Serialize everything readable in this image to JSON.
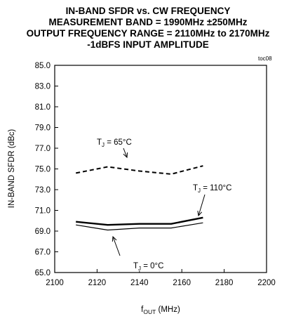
{
  "chart_data": {
    "type": "line",
    "title_lines": [
      "IN-BAND SFDR vs. CW FREQUENCY",
      "MEASUREMENT BAND = 1990MHz ±250MHz",
      "OUTPUT FREQUENCY RANGE = 2110MHz to 2170MHz",
      "-1dBFS INPUT AMPLITUDE"
    ],
    "tag": "toc08",
    "xlabel": {
      "main": "f",
      "sub": "OUT",
      "unit": " (MHz)"
    },
    "ylabel": "IN-BAND SFDR (dBc)",
    "xlim": [
      2100,
      2200
    ],
    "ylim": [
      65,
      85
    ],
    "xticks": [
      "2100",
      "2120",
      "2140",
      "2160",
      "2180",
      "2200"
    ],
    "yticks": [
      "65.0",
      "67.0",
      "69.0",
      "71.0",
      "73.0",
      "75.0",
      "77.0",
      "79.0",
      "81.0",
      "83.0",
      "85.0"
    ],
    "grid": false,
    "series": [
      {
        "name": "T_J = 65°C",
        "label_main": "T",
        "label_sub": "J",
        "label_rest": " = 65°C",
        "style": "dashed",
        "stroke_width": 2,
        "x": [
          2110,
          2125,
          2140,
          2155,
          2170
        ],
        "y": [
          74.6,
          75.2,
          74.8,
          74.5,
          75.3
        ]
      },
      {
        "name": "T_J = 110°C",
        "label_main": "T",
        "label_sub": "J",
        "label_rest": " = 110°C",
        "style": "solid",
        "stroke_width": 2.4,
        "x": [
          2110,
          2125,
          2140,
          2155,
          2170
        ],
        "y": [
          69.9,
          69.6,
          69.7,
          69.7,
          70.3
        ]
      },
      {
        "name": "T_J = 0°C",
        "label_main": "T",
        "label_sub": "J",
        "label_rest": " = 0°C",
        "style": "solid",
        "stroke_width": 1.2,
        "x": [
          2110,
          2125,
          2140,
          2155,
          2170
        ],
        "y": [
          69.6,
          69.1,
          69.3,
          69.3,
          69.8
        ]
      }
    ]
  }
}
